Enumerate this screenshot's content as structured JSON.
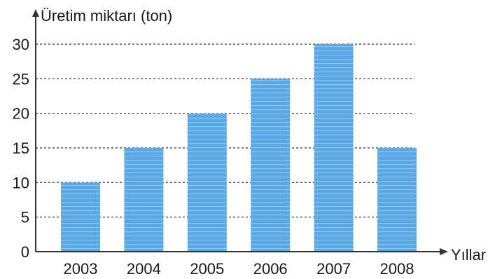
{
  "chart_data": {
    "type": "bar",
    "ylabel": "Üretim miktarı (ton)",
    "xlabel": "Yıllar",
    "categories": [
      "2003",
      "2004",
      "2005",
      "2006",
      "2007",
      "2008"
    ],
    "values": [
      10,
      15,
      20,
      25,
      30,
      15
    ],
    "ylim": [
      0,
      30
    ],
    "yticks": [
      0,
      5,
      10,
      15,
      20,
      25,
      30
    ],
    "grid": "dashed horizontal",
    "colors": {
      "bar": "#5aa9e6",
      "bar_stripe": "#8cc6ef",
      "axis": "#333333",
      "grid": "#555555"
    }
  }
}
